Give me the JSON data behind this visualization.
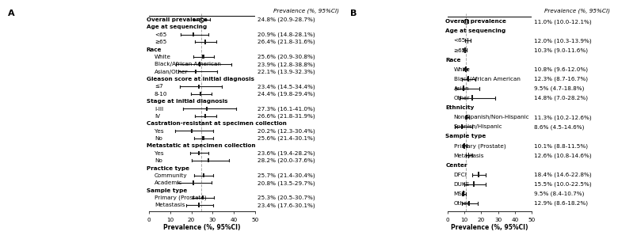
{
  "panel_A": {
    "categories": [
      {
        "label": "Overall prevalence",
        "bold": true,
        "header": false,
        "overall": true,
        "indent": false
      },
      {
        "label": "Age at sequencing",
        "bold": true,
        "header": true,
        "overall": false,
        "indent": false
      },
      {
        "label": "<65",
        "bold": false,
        "header": false,
        "overall": false,
        "indent": true
      },
      {
        "label": "≥65",
        "bold": false,
        "header": false,
        "overall": false,
        "indent": true
      },
      {
        "label": "Race",
        "bold": true,
        "header": true,
        "overall": false,
        "indent": false
      },
      {
        "label": "White",
        "bold": false,
        "header": false,
        "overall": false,
        "indent": true
      },
      {
        "label": "Black/African American",
        "bold": false,
        "header": false,
        "overall": false,
        "indent": true
      },
      {
        "label": "Asian/Other",
        "bold": false,
        "header": false,
        "overall": false,
        "indent": true
      },
      {
        "label": "Gleason score at initial diagnosis",
        "bold": true,
        "header": true,
        "overall": false,
        "indent": false
      },
      {
        "label": "≤7",
        "bold": false,
        "header": false,
        "overall": false,
        "indent": true
      },
      {
        "label": "8-10",
        "bold": false,
        "header": false,
        "overall": false,
        "indent": true
      },
      {
        "label": "Stage at initial diagnosis",
        "bold": true,
        "header": true,
        "overall": false,
        "indent": false
      },
      {
        "label": "I-III",
        "bold": false,
        "header": false,
        "overall": false,
        "indent": true
      },
      {
        "label": "IV",
        "bold": false,
        "header": false,
        "overall": false,
        "indent": true
      },
      {
        "label": "Castration-resistant at specimen collection",
        "bold": true,
        "header": true,
        "overall": false,
        "indent": false
      },
      {
        "label": "Yes",
        "bold": false,
        "header": false,
        "overall": false,
        "indent": true
      },
      {
        "label": "No",
        "bold": false,
        "header": false,
        "overall": false,
        "indent": true
      },
      {
        "label": "Metastatic at specimen collection",
        "bold": true,
        "header": true,
        "overall": false,
        "indent": false
      },
      {
        "label": "Yes",
        "bold": false,
        "header": false,
        "overall": false,
        "indent": true
      },
      {
        "label": "No",
        "bold": false,
        "header": false,
        "overall": false,
        "indent": true
      },
      {
        "label": "Practice type",
        "bold": true,
        "header": true,
        "overall": false,
        "indent": false
      },
      {
        "label": "Community",
        "bold": false,
        "header": false,
        "overall": false,
        "indent": true
      },
      {
        "label": "Academic",
        "bold": false,
        "header": false,
        "overall": false,
        "indent": true
      },
      {
        "label": "Sample type",
        "bold": true,
        "header": true,
        "overall": false,
        "indent": false
      },
      {
        "label": "Primary (Prostate)",
        "bold": false,
        "header": false,
        "overall": false,
        "indent": true
      },
      {
        "label": "Metastasis",
        "bold": false,
        "header": false,
        "overall": false,
        "indent": true
      }
    ],
    "values": [
      24.8,
      null,
      20.9,
      26.4,
      null,
      25.6,
      23.9,
      22.1,
      null,
      23.4,
      24.4,
      null,
      27.3,
      26.6,
      null,
      20.2,
      25.6,
      null,
      23.6,
      28.2,
      null,
      25.7,
      20.8,
      null,
      25.3,
      23.4
    ],
    "ci_low": [
      20.9,
      null,
      14.8,
      21.8,
      null,
      20.9,
      12.8,
      13.9,
      null,
      14.5,
      19.8,
      null,
      16.1,
      21.8,
      null,
      12.3,
      21.4,
      null,
      19.4,
      20.0,
      null,
      21.4,
      13.5,
      null,
      20.5,
      17.6
    ],
    "ci_high": [
      28.7,
      null,
      28.1,
      31.6,
      null,
      30.8,
      38.8,
      32.3,
      null,
      34.4,
      29.4,
      null,
      41.0,
      31.9,
      null,
      30.4,
      30.1,
      null,
      28.2,
      37.6,
      null,
      30.4,
      29.7,
      null,
      30.7,
      30.1
    ],
    "ci_labels": [
      "24.8% (20.9-28.7%)",
      "",
      "20.9% (14.8-28.1%)",
      "26.4% (21.8-31.6%)",
      "",
      "25.6% (20.9-30.8%)",
      "23.9% (12.8-38.8%)",
      "22.1% (13.9-32.3%)",
      "",
      "23.4% (14.5-34.4%)",
      "24.4% (19.8-29.4%)",
      "",
      "27.3% (16.1-41.0%)",
      "26.6% (21.8-31.9%)",
      "",
      "20.2% (12.3-30.4%)",
      "25.6% (21.4-30.1%)",
      "",
      "23.6% (19.4-28.2%)",
      "28.2% (20.0-37.6%)",
      "",
      "25.7% (21.4-30.4%)",
      "20.8% (13.5-29.7%)",
      "",
      "25.3% (20.5-30.7%)",
      "23.4% (17.6-30.1%)"
    ],
    "dashed_line": 24.8,
    "xlim": [
      0,
      50
    ],
    "xticks": [
      0,
      10,
      20,
      30,
      40,
      50
    ],
    "xlabel": "Prevalence (%, 95%CI)",
    "col_header": "Prevalence (%, 95%CI)"
  },
  "panel_B": {
    "categories": [
      {
        "label": "Overall prevalence",
        "bold": true,
        "header": false,
        "overall": true,
        "indent": false
      },
      {
        "label": "Age at sequencing",
        "bold": true,
        "header": true,
        "overall": false,
        "indent": false
      },
      {
        "label": "<65",
        "bold": false,
        "header": false,
        "overall": false,
        "indent": true
      },
      {
        "label": "≥65",
        "bold": false,
        "header": false,
        "overall": false,
        "indent": true
      },
      {
        "label": "Race",
        "bold": true,
        "header": true,
        "overall": false,
        "indent": false
      },
      {
        "label": "White",
        "bold": false,
        "header": false,
        "overall": false,
        "indent": true
      },
      {
        "label": "Black/African American",
        "bold": false,
        "header": false,
        "overall": false,
        "indent": true
      },
      {
        "label": "Asian",
        "bold": false,
        "header": false,
        "overall": false,
        "indent": true
      },
      {
        "label": "Other",
        "bold": false,
        "header": false,
        "overall": false,
        "indent": true
      },
      {
        "label": "Ethnicity",
        "bold": true,
        "header": true,
        "overall": false,
        "indent": false
      },
      {
        "label": "Non-Spanish/Non-Hispanic",
        "bold": false,
        "header": false,
        "overall": false,
        "indent": true
      },
      {
        "label": "Spanish/Hispanic",
        "bold": false,
        "header": false,
        "overall": false,
        "indent": true
      },
      {
        "label": "Sample type",
        "bold": true,
        "header": true,
        "overall": false,
        "indent": false
      },
      {
        "label": "Primary (Prostate)",
        "bold": false,
        "header": false,
        "overall": false,
        "indent": true
      },
      {
        "label": "Metastasis",
        "bold": false,
        "header": false,
        "overall": false,
        "indent": true
      },
      {
        "label": "Center",
        "bold": true,
        "header": true,
        "overall": false,
        "indent": false
      },
      {
        "label": "DFCI",
        "bold": false,
        "header": false,
        "overall": false,
        "indent": true
      },
      {
        "label": "DUKE",
        "bold": false,
        "header": false,
        "overall": false,
        "indent": true
      },
      {
        "label": "MSK",
        "bold": false,
        "header": false,
        "overall": false,
        "indent": true
      },
      {
        "label": "Other",
        "bold": false,
        "header": false,
        "overall": false,
        "indent": true
      }
    ],
    "values": [
      11.0,
      null,
      12.0,
      10.3,
      null,
      10.8,
      12.3,
      9.5,
      14.8,
      null,
      11.3,
      8.6,
      null,
      10.1,
      12.6,
      null,
      18.4,
      15.5,
      9.5,
      12.9
    ],
    "ci_low": [
      10.0,
      null,
      10.3,
      9.0,
      null,
      9.6,
      8.7,
      4.7,
      7.0,
      null,
      10.2,
      4.5,
      null,
      8.8,
      10.8,
      null,
      14.6,
      10.0,
      8.4,
      8.6
    ],
    "ci_high": [
      12.1,
      null,
      13.9,
      11.6,
      null,
      12.0,
      16.7,
      18.8,
      28.2,
      null,
      12.6,
      14.6,
      null,
      11.5,
      14.6,
      null,
      22.8,
      22.5,
      10.7,
      18.2
    ],
    "ci_labels": [
      "11.0% (10.0-12.1%)",
      "",
      "12.0% (10.3-13.9%)",
      "10.3% (9.0-11.6%)",
      "",
      "10.8% (9.6-12.0%)",
      "12.3% (8.7-16.7%)",
      "9.5% (4.7-18.8%)",
      "14.8% (7.0-28.2%)",
      "",
      "11.3% (10.2-12.6%)",
      "8.6% (4.5-14.6%)",
      "",
      "10.1% (8.8-11.5%)",
      "12.6% (10.8-14.6%)",
      "",
      "18.4% (14.6-22.8%)",
      "15.5% (10.0-22.5%)",
      "9.5% (8.4-10.7%)",
      "12.9% (8.6-18.2%)"
    ],
    "dashed_line": 11.0,
    "xlim": [
      0,
      50
    ],
    "xticks": [
      0,
      10,
      20,
      30,
      40,
      50
    ],
    "xlabel": "Prevalence (%, 95%CI)",
    "col_header": "Prevalence (%, 95%CI)"
  },
  "colors": {
    "square": "#1a1a1a",
    "overall_edge": "#1a1a1a",
    "line": "#1a1a1a",
    "dashed_line": "#aaaaaa",
    "top_line": "#000000"
  },
  "fontsizes": {
    "label": 5.2,
    "tick": 5.2,
    "col_header": 5.2,
    "panel_letter": 8,
    "xlabel": 5.5
  }
}
